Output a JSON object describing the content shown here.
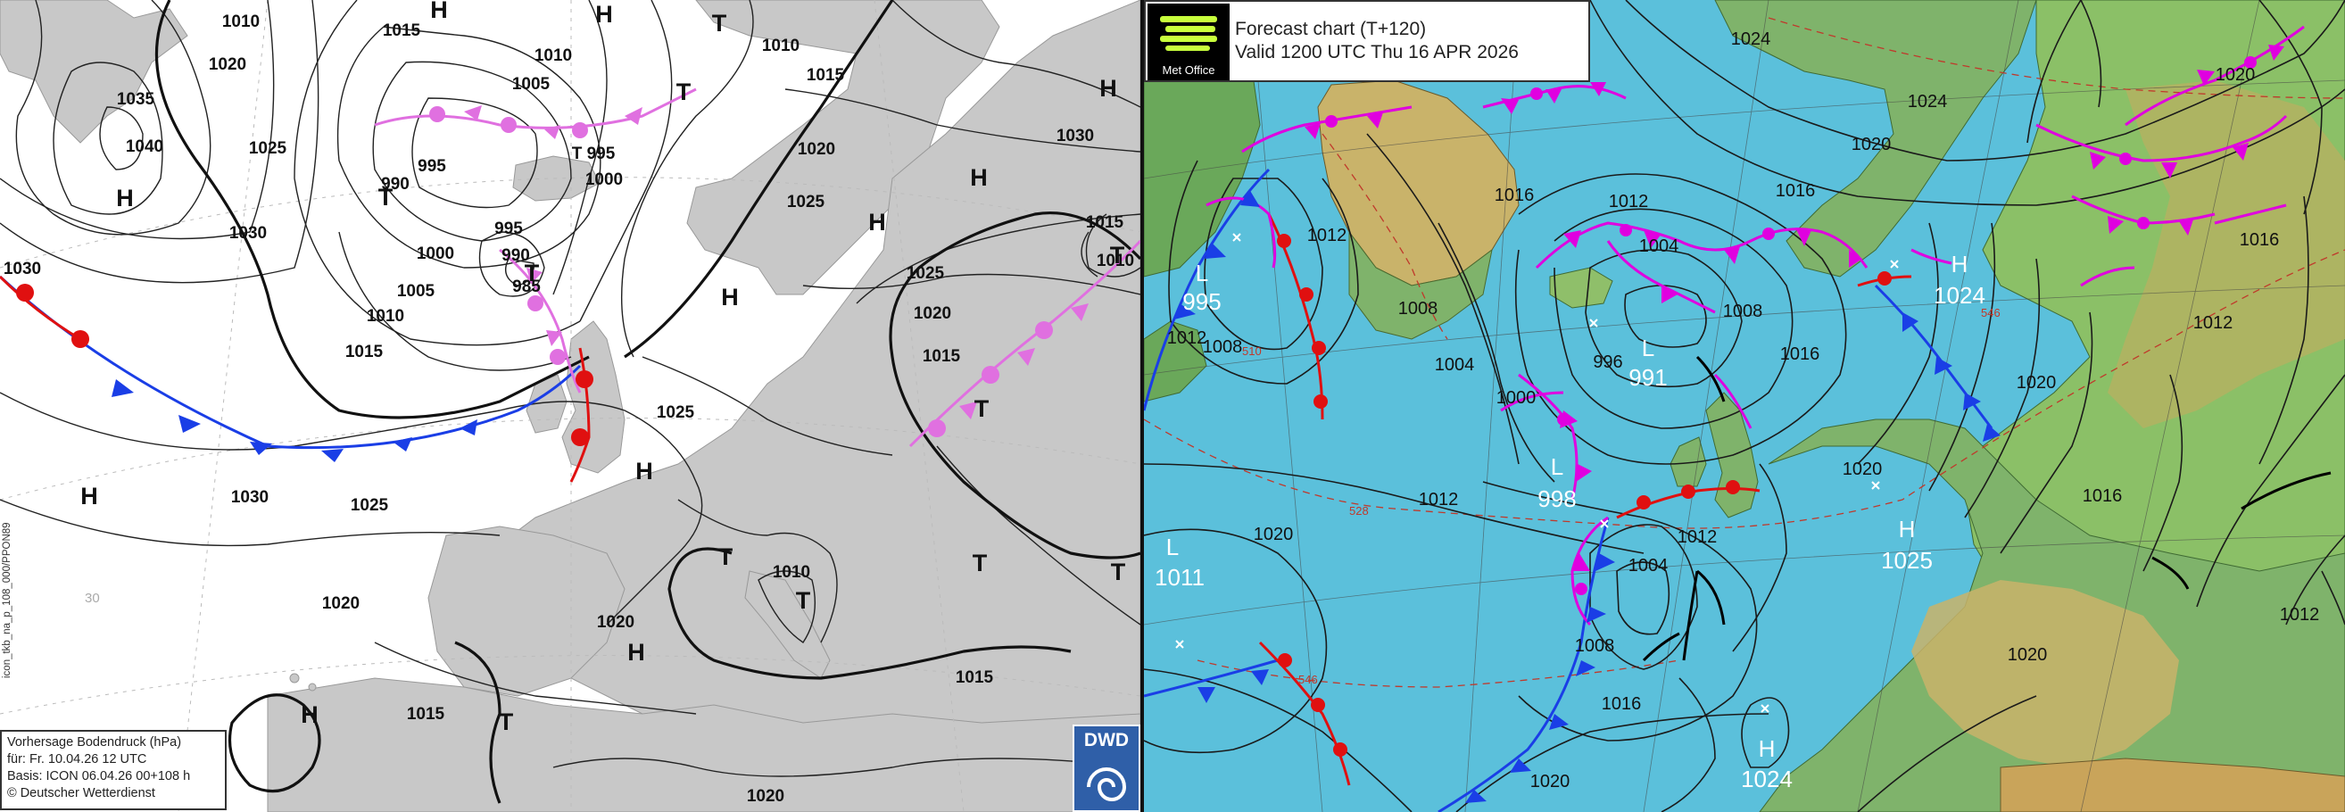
{
  "dwd": {
    "legend": {
      "line1": "Vorhersage Bodendruck (hPa)",
      "line2": "für:  Fr. 10.04.26  12 UTC",
      "line3": "Basis: ICON  06.04.26 00+108 h",
      "line4": "© Deutscher Wetterdienst"
    },
    "side_code": "icon_tkb_na_p_108_000/PPON89",
    "logo_text": "DWD",
    "lat_label": "30",
    "isobar_labels": [
      "1010",
      "1015",
      "1020",
      "1035",
      "1040",
      "1025",
      "1030",
      "1030",
      "1005",
      "1010",
      "995",
      "990",
      "T 995",
      "995",
      "1000",
      "1000",
      "990",
      "985",
      "1005",
      "1010",
      "1015",
      "1010",
      "1015",
      "1020",
      "1025",
      "1025",
      "1020",
      "1015",
      "1030",
      "1015",
      "1010",
      "1025",
      "1030",
      "1025",
      "1020",
      "1010",
      "1020",
      "1015",
      "1015",
      "1020"
    ],
    "pressure_centres": [
      "H",
      "H",
      "T",
      "T",
      "T",
      "H",
      "H",
      "H",
      "H",
      "T",
      "H",
      "T",
      "T",
      "H",
      "H",
      "T",
      "T",
      "T",
      "T",
      "T",
      "H",
      "H"
    ]
  },
  "metoffice": {
    "logo_text": "Met Office",
    "title_line1": "Forecast chart (T+120)",
    "title_line2": "Valid 1200 UTC Thu 16 APR 2026",
    "centres": [
      {
        "type": "L",
        "value": "995"
      },
      {
        "type": "L",
        "value": "991"
      },
      {
        "type": "L",
        "value": "998"
      },
      {
        "type": "L",
        "value": "1011"
      },
      {
        "type": "H",
        "value": "1024"
      },
      {
        "type": "H",
        "value": "1025"
      },
      {
        "type": "H",
        "value": "1024"
      }
    ],
    "isobar_labels": [
      "1024",
      "1024",
      "1020",
      "1020",
      "1016",
      "1012",
      "1012",
      "1004",
      "1008",
      "1008",
      "1012",
      "1016",
      "1008",
      "1004",
      "996",
      "1000",
      "1016",
      "1012",
      "1020",
      "1020",
      "1020",
      "1004",
      "1012",
      "1008",
      "1016",
      "1020",
      "1016",
      "1012",
      "1012",
      "1016",
      "1020"
    ],
    "thickness_labels": [
      "528",
      "546",
      "546",
      "510"
    ]
  }
}
